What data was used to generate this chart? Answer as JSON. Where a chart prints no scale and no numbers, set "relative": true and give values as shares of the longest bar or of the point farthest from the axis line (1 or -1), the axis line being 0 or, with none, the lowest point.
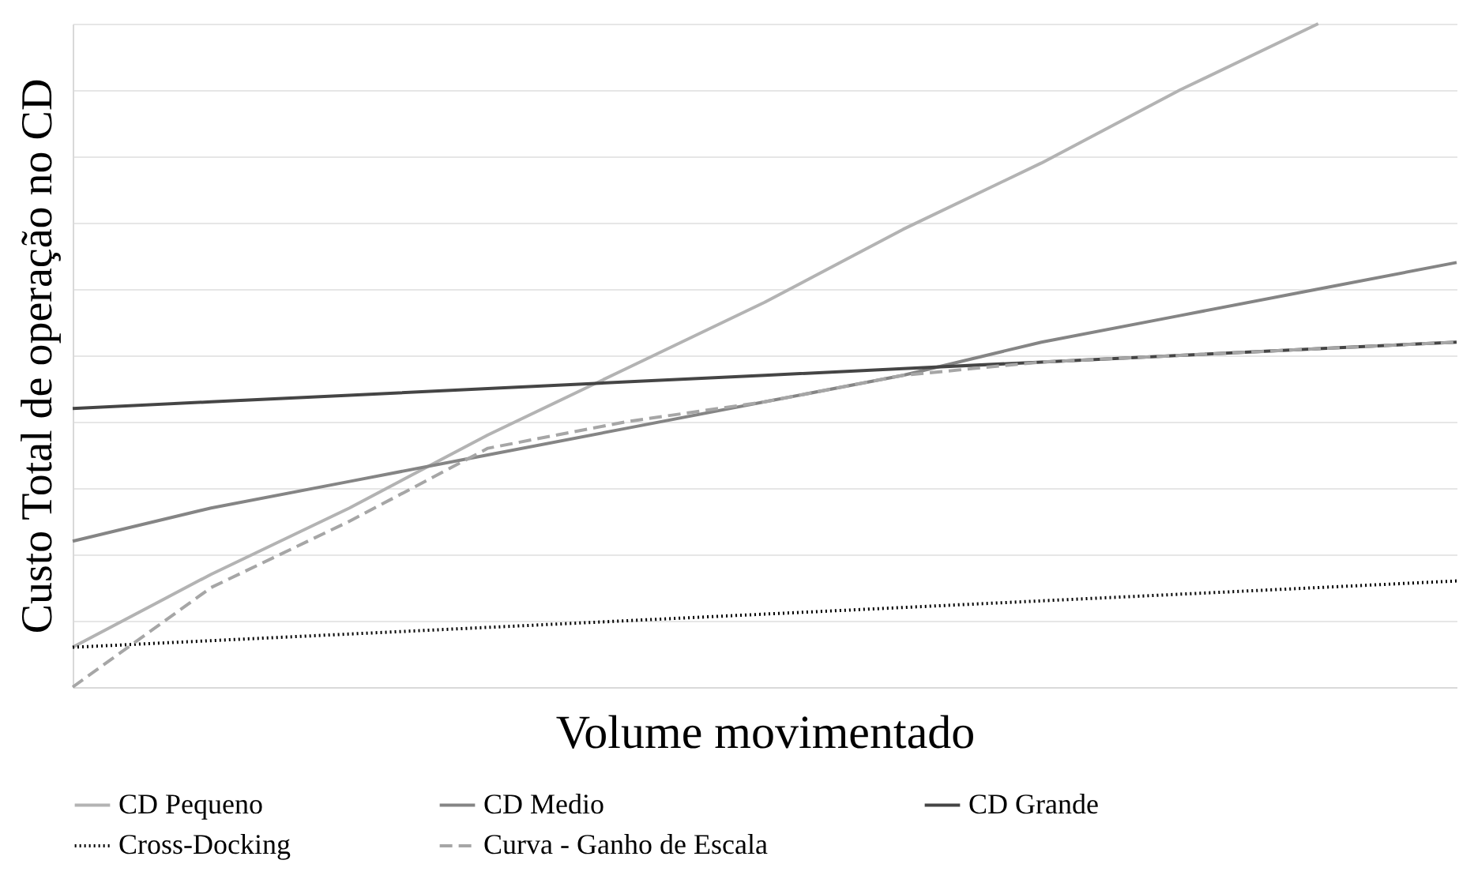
{
  "chart_data": {
    "type": "line",
    "relative": true,
    "xlabel": "Volume movimentado",
    "ylabel": "Custo Total de operação no CD",
    "categories": [
      null,
      null,
      null,
      null,
      null,
      null,
      null,
      null,
      null,
      null,
      null
    ],
    "grid": "y",
    "legend": "bottom",
    "marker": "none",
    "series": [
      {
        "name": "CD Pequeno",
        "color": "#b3b3b3",
        "line_style": "solid",
        "values": [
          0.06,
          0.17,
          0.27,
          0.38,
          0.48,
          0.58,
          0.69,
          0.79,
          0.9,
          1.0,
          null
        ]
      },
      {
        "name": "CD Medio",
        "color": "#858585",
        "line_style": "solid",
        "values": [
          0.22,
          0.27,
          0.31,
          0.35,
          0.39,
          0.43,
          0.47,
          0.52,
          0.56,
          0.6,
          0.64
        ]
      },
      {
        "name": "CD Grande",
        "color": "#454545",
        "line_style": "solid",
        "values": [
          0.42,
          0.43,
          0.44,
          0.45,
          0.46,
          0.47,
          0.48,
          0.49,
          0.5,
          0.51,
          0.52
        ]
      },
      {
        "name": "Cross-Docking",
        "color": "#000000",
        "line_style": "dotted",
        "values": [
          0.06,
          0.07,
          0.08,
          0.09,
          0.1,
          0.11,
          0.12,
          0.13,
          0.14,
          0.15,
          0.16
        ]
      },
      {
        "name": "Curva -  Ganho de Escala",
        "color": "#a6a6a6",
        "line_style": "dashed",
        "values": [
          0,
          0.15,
          0.25,
          0.36,
          0.4,
          0.43,
          0.47,
          0.49,
          0.5,
          0.51,
          0.52
        ]
      }
    ]
  }
}
